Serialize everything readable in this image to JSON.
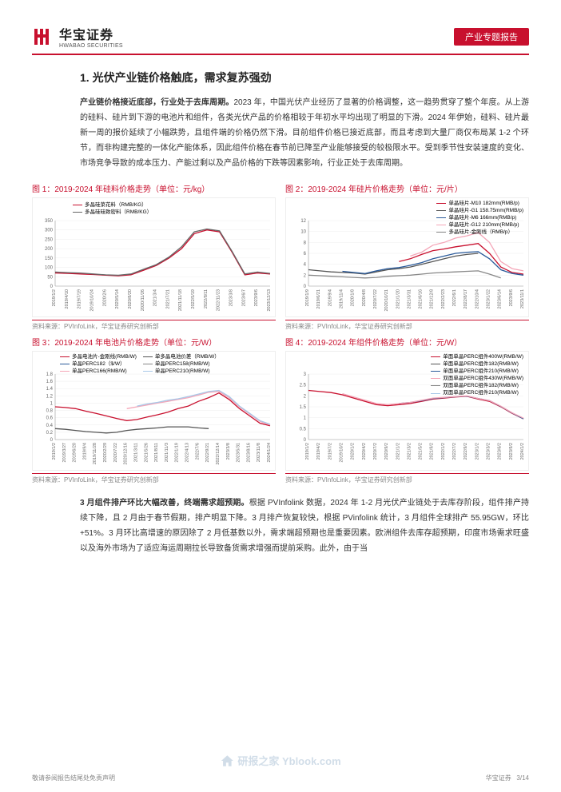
{
  "header": {
    "logo_cn": "华宝证券",
    "logo_en": "HWABAO SECURITIES",
    "report_tag": "产业专题报告"
  },
  "section_title": "1. 光伏产业链价格触底，需求复苏强劲",
  "para1_bold": "产业链价格接近底部，行业处于去库周期。",
  "para1": "2023 年，中国光伏产业经历了显著的价格调整，这一趋势贯穿了整个年度。从上游的硅料、硅片到下游的电池片和组件，各类光伏产品的价格相较于年初水平均出现了明显的下滑。2024 年伊始，硅料、硅片最新一周的报价延续了小幅跌势，且组件端的价格仍然下滑。目前组件价格已接近底部，而且考虑到大量厂商仅布局某 1-2 个环节，而非构建完整的一体化产能体系，因此组件价格在春节前已降至产业能够接受的较极限水平。受到季节性安装速度的变化、市场竞争导致的成本压力、产能过剩以及产品价格的下跌等因素影响，行业正处于去库周期。",
  "para2_bold": "3 月组件排产环比大幅改善，终端需求超预期。",
  "para2": "根据 PVInfolink 数据，2024 年 1-2 月光伏产业链处于去库存阶段，组件排产持续下降，且 2 月由于春节假期，排产明显下降。3 月排产恢复较快，根据 PVinfolink 统计，3 月组件全球排产 55.95GW，环比+51%。3 月环比高增速的原因除了 2 月低基数以外，需求端超预期也是重要因素。欧洲组件去库存超预期，印度市场需求旺盛以及海外市场为了适应海运周期拉长导致备货需求增强而提前采购。此外，由于当",
  "charts": {
    "c1": {
      "title": "图 1：2019-2024 年硅料价格走势（单位：元/kg）",
      "source": "资料来源：PVInfoLink，华宝证券研究创新部",
      "ylim": [
        0,
        350
      ],
      "yticks": [
        0,
        50,
        100,
        150,
        200,
        250,
        300,
        350
      ],
      "xlabels": [
        "2019/1/2",
        "2019/4/10",
        "2019/7/19",
        "2019/10/24",
        "2020/2/6",
        "2020/5/14",
        "2020/8/20",
        "2020/11/26",
        "2021/3/4",
        "2021/7/21",
        "2021/11/18",
        "2022/5/19",
        "2022/8/11",
        "2022/11/23",
        "2023/3/8",
        "2023/6/7",
        "2023/9/6",
        "2023/12/13"
      ],
      "legend": [
        {
          "label": "多晶硅菜花料（RMB/KG）",
          "color": "#c8102e"
        },
        {
          "label": "多晶硅硅致密料（RMB/KG）",
          "color": "#666666"
        }
      ],
      "series": [
        {
          "color": "#c8102e",
          "data": [
            70,
            68,
            65,
            62,
            58,
            55,
            60,
            85,
            110,
            150,
            200,
            280,
            300,
            290,
            180,
            60,
            70,
            65
          ]
        },
        {
          "color": "#666666",
          "data": [
            75,
            72,
            70,
            65,
            60,
            58,
            65,
            90,
            115,
            155,
            210,
            290,
            305,
            295,
            185,
            65,
            75,
            68
          ]
        }
      ]
    },
    "c2": {
      "title": "图 2：2019-2024 年硅片价格走势（单位：元/片）",
      "source": "资料来源：PVInfoLink，华宝证券研究创新部",
      "ylim": [
        0,
        12
      ],
      "yticks": [
        0,
        2,
        4,
        6,
        8,
        10,
        12
      ],
      "xlabels": [
        "2019/1/9",
        "2019/6/21",
        "2019/9/4",
        "2019/11/4",
        "2020/1/8",
        "2020/4/8",
        "2020/7/22",
        "2020/10/21",
        "2021/1/20",
        "2021/3/31",
        "2021/6/16",
        "2021/12/8",
        "2022/2/23",
        "2022/6/1",
        "2022/8/17",
        "2022/10/4",
        "2023/1/22",
        "2023/6/14",
        "2023/9/6",
        "2023/11/1"
      ],
      "legend": [
        {
          "label": "单晶硅片-M10 182mm(RMB/p)",
          "color": "#c8102e"
        },
        {
          "label": "单晶硅片-G1 158.75mm(RMB/p)",
          "color": "#555555"
        },
        {
          "label": "单晶硅片-M6 166mm(RMB/p)",
          "color": "#2a5a9a"
        },
        {
          "label": "单晶硅片-G12 210mm(RMB/p)",
          "color": "#f4a6b8"
        },
        {
          "label": "多晶硅片-金刚线（RMB/p）",
          "color": "#888888"
        }
      ],
      "series": [
        {
          "color": "#c8102e",
          "data": [
            null,
            null,
            null,
            null,
            null,
            null,
            null,
            null,
            4.5,
            5.0,
            5.8,
            6.5,
            6.8,
            7.2,
            7.5,
            7.8,
            6.0,
            3.5,
            2.5,
            2.2
          ]
        },
        {
          "color": "#555555",
          "data": [
            3.0,
            2.8,
            2.6,
            2.5,
            2.4,
            2.2,
            2.6,
            3.0,
            3.2,
            3.5,
            4.0,
            4.5,
            5.0,
            5.5,
            5.8,
            6.0,
            null,
            null,
            null,
            null
          ]
        },
        {
          "color": "#2a5a9a",
          "data": [
            null,
            null,
            null,
            2.7,
            2.5,
            2.3,
            2.8,
            3.2,
            3.4,
            3.8,
            4.3,
            5.0,
            5.5,
            6.0,
            6.2,
            6.3,
            5.0,
            3.0,
            2.3,
            2.0
          ]
        },
        {
          "color": "#f4a6b8",
          "data": [
            null,
            null,
            null,
            null,
            null,
            null,
            null,
            null,
            null,
            5.5,
            6.2,
            7.5,
            8.0,
            8.8,
            9.2,
            9.8,
            8.0,
            4.5,
            3.2,
            2.8
          ]
        },
        {
          "color": "#888888",
          "data": [
            2.0,
            1.9,
            1.8,
            1.7,
            1.6,
            1.5,
            1.6,
            1.8,
            1.9,
            2.0,
            2.2,
            2.4,
            2.5,
            2.6,
            2.7,
            2.8,
            2.2,
            1.5,
            null,
            null
          ]
        }
      ]
    },
    "c3": {
      "title": "图 3：2019-2024 年电池片价格走势（单位：元/W）",
      "source": "资料来源：PVInfoLink，华宝证券研究创新部",
      "ylim": [
        0,
        1.8
      ],
      "yticks": [
        0,
        0.2,
        0.4,
        0.6,
        0.8,
        1.0,
        1.2,
        1.4,
        1.6,
        1.8
      ],
      "xlabels": [
        "2019/1/2",
        "2019/3/27",
        "2019/6/20",
        "2019/9/4",
        "2019/11/28",
        "2020/2/29",
        "2020/7/22",
        "2020/12/16",
        "2021/3/11",
        "2021/5/26",
        "2021/8/11",
        "2021/11/3",
        "2022/1/19",
        "2022/4/13",
        "2022/7/6",
        "2022/9/21",
        "2022/12/14",
        "2023/3/8",
        "2023/5/31",
        "2023/8/16",
        "2023/11/8",
        "2024/1/24"
      ],
      "legend": [
        {
          "label": "多晶电池片-金刚线(RMB/W)",
          "color": "#c8102e"
        },
        {
          "label": "单多晶电池价差（RMB/W）",
          "color": "#555555"
        },
        {
          "label": "单晶PERC182（$/W）",
          "color": "#2a5a9a"
        },
        {
          "label": "单晶PERC158(RMB/W)",
          "color": "#888888"
        },
        {
          "label": "单晶PERC166(RMB/W)",
          "color": "#f4a6b8"
        },
        {
          "label": "单晶PERC210(RMB/W)",
          "color": "#a8c8e8"
        }
      ],
      "series": [
        {
          "color": "#c8102e",
          "data": [
            0.9,
            0.88,
            0.85,
            0.78,
            0.72,
            0.65,
            0.58,
            0.52,
            0.55,
            0.62,
            0.68,
            0.75,
            0.85,
            0.92,
            1.05,
            1.15,
            1.28,
            1.1,
            0.85,
            0.65,
            0.45,
            0.38
          ]
        },
        {
          "color": "#555555",
          "data": [
            0.3,
            0.28,
            0.25,
            0.22,
            0.2,
            0.18,
            0.2,
            0.25,
            0.28,
            0.3,
            0.32,
            0.35,
            0.35,
            0.35,
            0.32,
            0.3,
            null,
            null,
            null,
            null,
            null,
            null
          ]
        },
        {
          "color": "#f4a6b8",
          "data": [
            null,
            null,
            null,
            null,
            null,
            null,
            null,
            0.85,
            0.9,
            0.95,
            1.0,
            1.05,
            1.1,
            1.15,
            1.22,
            1.3,
            1.32,
            1.15,
            0.9,
            0.7,
            0.5,
            0.4
          ]
        },
        {
          "color": "#a8c8e8",
          "data": [
            null,
            null,
            null,
            null,
            null,
            null,
            null,
            null,
            0.92,
            0.98,
            1.02,
            1.08,
            1.12,
            1.18,
            1.25,
            1.32,
            1.35,
            1.18,
            0.92,
            0.72,
            0.52,
            0.42
          ]
        }
      ]
    },
    "c4": {
      "title": "图 4：2019-2024 年组件价格走势（单位：元/W）",
      "source": "资料来源：PVInfoLink，华宝证券研究创新部",
      "ylim": [
        0,
        3.0
      ],
      "yticks": [
        0,
        0.5,
        1.0,
        1.5,
        2.0,
        2.5,
        3.0
      ],
      "xlabels": [
        "2019/1/2",
        "2019/4/2",
        "2019/7/2",
        "2019/10/2",
        "2020/1/2",
        "2020/4/2",
        "2020/7/2",
        "2020/9/2",
        "2021/1/2",
        "2021/3/2",
        "2021/5/2",
        "2021/9/2",
        "2022/1/2",
        "2022/7/2",
        "2022/9/2",
        "2023/1/2",
        "2023/3/2",
        "2023/6/2",
        "2023/9/2",
        "2024/1/2"
      ],
      "legend": [
        {
          "label": "单面单晶PERC组件400W(RMB/W)",
          "color": "#c8102e"
        },
        {
          "label": "单面单晶PERC组件182(RMB/W)",
          "color": "#555555"
        },
        {
          "label": "单面单晶PERC组件210(RMB/W)",
          "color": "#2a5a9a"
        },
        {
          "label": "双面单晶PERC组件430W(RMB/W)",
          "color": "#f4a6b8"
        },
        {
          "label": "双面单晶PERC组件182(RMB/W)",
          "color": "#888888"
        },
        {
          "label": "双面单晶PERC组件210(RMB/W)",
          "color": "#a8c8e8"
        }
      ],
      "series": [
        {
          "color": "#c8102e",
          "data": [
            2.25,
            2.2,
            2.15,
            2.05,
            1.9,
            1.75,
            1.6,
            1.55,
            1.6,
            1.65,
            1.75,
            1.85,
            1.9,
            1.95,
            1.98,
            1.85,
            1.75,
            1.5,
            1.2,
            0.95
          ]
        },
        {
          "color": "#2a5a9a",
          "data": [
            null,
            null,
            null,
            null,
            null,
            null,
            null,
            null,
            1.65,
            1.7,
            1.78,
            1.88,
            1.92,
            1.96,
            1.99,
            1.88,
            1.78,
            1.52,
            1.22,
            0.95
          ]
        },
        {
          "color": "#f4a6b8",
          "data": [
            null,
            null,
            null,
            2.1,
            1.95,
            1.8,
            1.65,
            1.6,
            1.65,
            1.7,
            1.8,
            1.9,
            1.93,
            1.97,
            2.0,
            1.88,
            1.78,
            1.53,
            1.23,
            0.98
          ]
        }
      ]
    }
  },
  "footer": {
    "disclaimer": "敬请参阅报告结尾处免责声明",
    "company": "华宝证券",
    "page": "3/14"
  },
  "watermark": "研报之家 Yblook.com",
  "colors": {
    "brand": "#c8102e",
    "text": "#333333",
    "axis": "#999999",
    "grid": "#e8e8e8"
  }
}
